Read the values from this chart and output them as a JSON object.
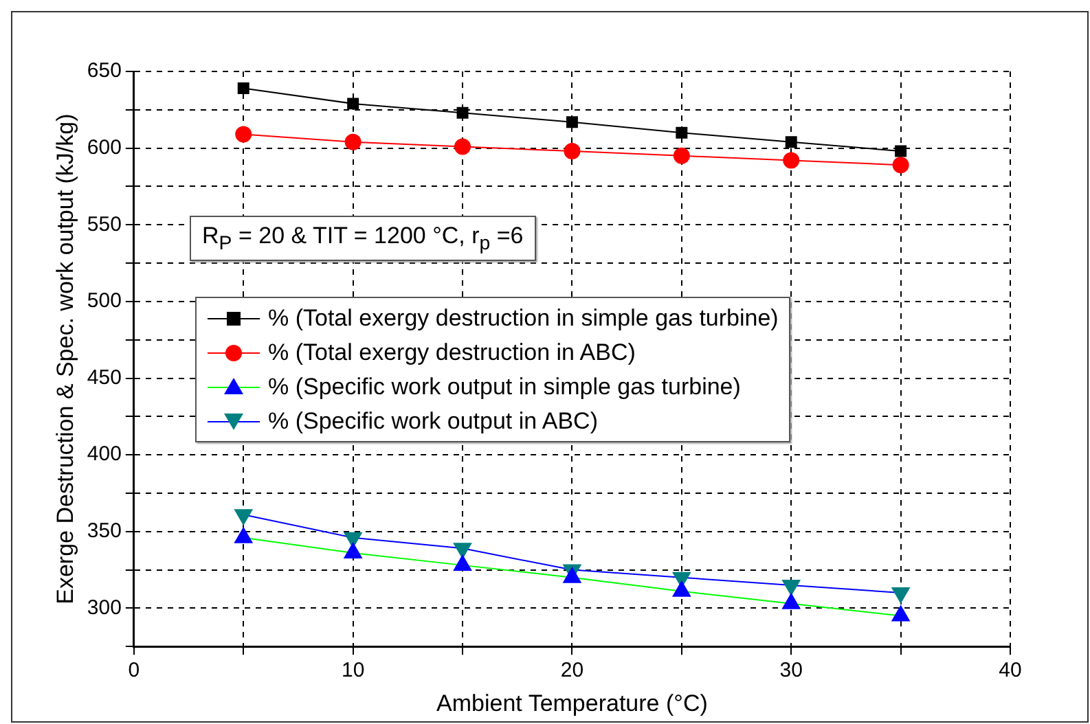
{
  "chart_data": {
    "type": "line",
    "xlabel": "Ambient Temperature (°C)",
    "ylabel": "Exerge Destruction & Spec. work output (kJ/kg)",
    "x": [
      5,
      10,
      15,
      20,
      25,
      30,
      35
    ],
    "series": [
      {
        "name": "% (Total exergy destruction in simple gas turbine)",
        "color": "#000000",
        "colors": [
          "#000000",
          "#000000",
          "#000000",
          "#000000",
          "#000000",
          "#000000",
          "#000000"
        ],
        "marker": "square",
        "values": [
          639,
          629,
          623,
          617,
          610,
          604,
          598
        ]
      },
      {
        "name": "% (Total exergy destruction in ABC)",
        "color": "#ff0000",
        "colors": [
          "#ff0000",
          "#ff0000",
          "#ff0000",
          "#ff0000",
          "#ff0000",
          "#ff0000",
          "#ff0000"
        ],
        "marker": "circle",
        "values": [
          609,
          604,
          601,
          598,
          595,
          592,
          589
        ]
      },
      {
        "name": "% (Specific work output in simple gas turbine)",
        "color": "#00ff00",
        "colors": [
          "#0000ff",
          "#0000ff",
          "#0000ff",
          "#0000ff",
          "#0000ff",
          "#0000ff",
          "#0000ff"
        ],
        "marker": "triangle",
        "values": [
          346,
          336,
          328,
          320,
          311,
          303,
          295
        ]
      },
      {
        "name": "% (Specific work output in ABC)",
        "color": "#0000ff",
        "colors": [
          "#008080",
          "#008080",
          "#008080",
          "#008080",
          "#008080",
          "#008080",
          "#008080"
        ],
        "marker": "triangle-down",
        "values": [
          361,
          346,
          339,
          325,
          320,
          315,
          310
        ]
      }
    ],
    "xlim": [
      0,
      40
    ],
    "xticks": [
      0,
      {
        "value": 5,
        "label": null
      },
      10,
      {
        "value": 15,
        "label": null
      },
      20,
      {
        "value": 25,
        "label": null
      },
      30,
      {
        "value": 35,
        "label": null
      },
      40
    ],
    "ylim": [
      275,
      650
    ],
    "yticks": [
      {
        "value": 275,
        "label": null
      },
      300,
      {
        "value": 325,
        "label": null
      },
      350,
      {
        "value": 375,
        "label": null
      },
      400,
      {
        "value": 425,
        "label": null
      },
      450,
      {
        "value": 475,
        "label": null
      },
      500,
      {
        "value": 525,
        "label": null
      },
      550,
      {
        "value": 575,
        "label": null
      },
      600,
      {
        "value": 625,
        "label": null
      },
      650
    ],
    "grid": true,
    "line_style": "solid",
    "legend": "left",
    "annotations": [
      "R$_{P}$ = 20 & TIT = 1200 °C, r$_{p}$ =6"
    ]
  }
}
